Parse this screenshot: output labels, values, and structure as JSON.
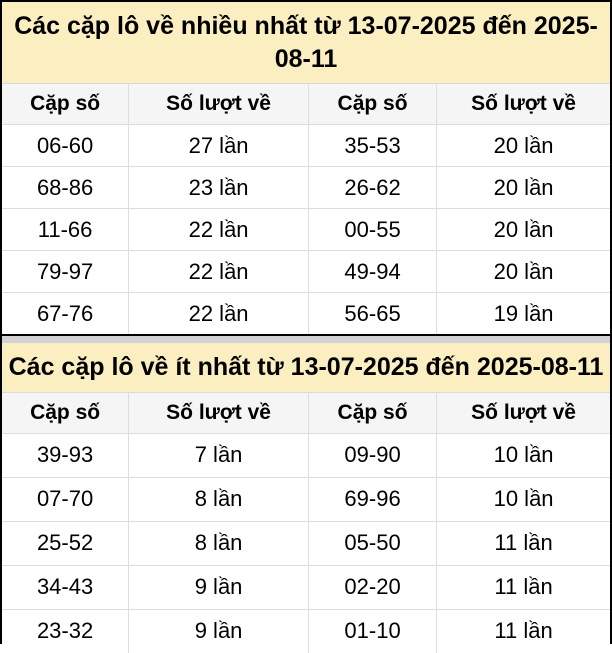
{
  "page": {
    "colors": {
      "title_bg": "#FBEFC1",
      "header_bg": "#F5F5F5",
      "outer_border": "#000000",
      "row_divider": "#DDDDDD",
      "section_gap_band": "#D2D2D2"
    },
    "tables": [
      {
        "title": "Các cặp lô về nhiều nhất từ 13-07-2025 đến 2025-08-11",
        "headers": [
          "Cặp số",
          "Số lượt về",
          "Cặp số",
          "Số lượt về"
        ],
        "rows": [
          [
            "06-60",
            "27 lần",
            "35-53",
            "20 lần"
          ],
          [
            "68-86",
            "23 lần",
            "26-62",
            "20 lần"
          ],
          [
            "11-66",
            "22 lần",
            "00-55",
            "20 lần"
          ],
          [
            "79-97",
            "22 lần",
            "49-94",
            "20 lần"
          ],
          [
            "67-76",
            "22 lần",
            "56-65",
            "19 lần"
          ]
        ]
      },
      {
        "title": "Các cặp lô về ít nhất từ 13-07-2025 đến 2025-08-11",
        "headers": [
          "Cặp số",
          "Số lượt về",
          "Cặp số",
          "Số lượt về"
        ],
        "rows": [
          [
            "39-93",
            "7 lần",
            "09-90",
            "10 lần"
          ],
          [
            "07-70",
            "8 lần",
            "69-96",
            "10 lần"
          ],
          [
            "25-52",
            "8 lần",
            "05-50",
            "11 lần"
          ],
          [
            "34-43",
            "9 lần",
            "02-20",
            "11 lần"
          ],
          [
            "23-32",
            "9 lần",
            "01-10",
            "11 lần"
          ]
        ]
      }
    ]
  }
}
